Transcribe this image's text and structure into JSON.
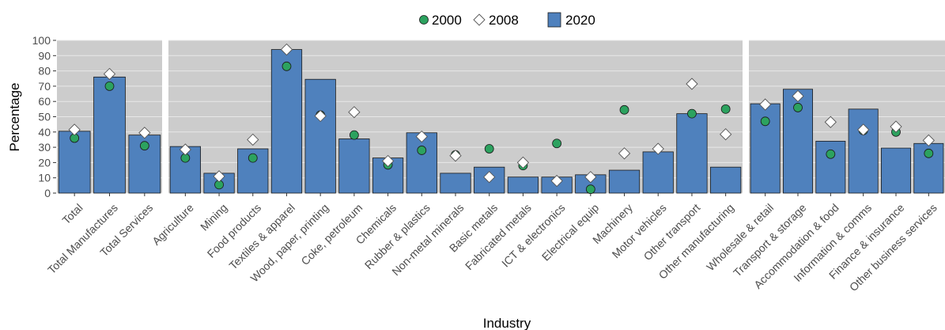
{
  "chart_data": {
    "type": "bar",
    "xlabel": "Industry",
    "ylabel": "Percentage",
    "ylim": [
      0,
      100
    ],
    "yticks": [
      0,
      10,
      20,
      30,
      40,
      50,
      60,
      70,
      80,
      90,
      100
    ],
    "grid": true,
    "legend": {
      "placement": "top",
      "items": [
        {
          "label": "2000",
          "marker": "circle",
          "color": "#2ca25f"
        },
        {
          "label": "2008",
          "marker": "diamond",
          "color": "#ffffff"
        },
        {
          "label": "2020",
          "marker": "bar",
          "color": "#4f81bd"
        }
      ]
    },
    "colors": {
      "bar": "#4f81bd",
      "panel": "#cccccc",
      "grid": "#e8e8e8",
      "circle": "#2ca25f",
      "diamond": "#ffffff"
    },
    "panels": [
      {
        "categories": [
          "Total",
          "Total Manufactures",
          "Total Services"
        ],
        "series": [
          {
            "name": "2020",
            "values": [
              40.5,
              76,
              38
            ]
          },
          {
            "name": "2000",
            "values": [
              36,
              70,
              31
            ]
          },
          {
            "name": "2008",
            "values": [
              41.5,
              78,
              39.5
            ]
          }
        ]
      },
      {
        "categories": [
          "Agriculture",
          "Mining",
          "Food products",
          "Textiles & apparel",
          "Wood, paper, printing",
          "Coke, petroleum",
          "Chemicals",
          "Rubber & plastics",
          "Non-metal minerals",
          "Basic metals",
          "Fabricated metals",
          "ICT & electronics",
          "Electrical equip",
          "Machinery",
          "Motor vehicles",
          "Other transport",
          "Other manufacturing"
        ],
        "series": [
          {
            "name": "2020",
            "values": [
              30.5,
              13,
              29,
              94,
              74.5,
              35.5,
              23,
              39.5,
              13,
              17,
              10.5,
              10.5,
              12,
              15,
              27,
              52,
              17
            ]
          },
          {
            "name": "2000",
            "values": [
              23,
              5.5,
              23,
              83,
              51,
              38,
              18.5,
              28,
              25,
              29,
              18,
              32.5,
              2.5,
              54.5,
              null,
              52,
              55
            ]
          },
          {
            "name": "2008",
            "values": [
              28.5,
              11,
              35,
              94,
              50.5,
              53,
              21,
              37,
              24.5,
              10.5,
              20,
              8,
              10.5,
              26,
              29,
              71.5,
              38.5
            ]
          }
        ]
      },
      {
        "categories": [
          "Wholesale & retail",
          "Transport & storage",
          "Accommodation & food",
          "Information & comms",
          "Finance & insurance",
          "Other business services"
        ],
        "series": [
          {
            "name": "2020",
            "values": [
              58.5,
              68,
              34,
              55,
              29.5,
              32.5
            ]
          },
          {
            "name": "2000",
            "values": [
              47,
              56,
              25.5,
              41,
              40,
              26
            ]
          },
          {
            "name": "2008",
            "values": [
              58,
              63.5,
              46.5,
              41.5,
              43.5,
              34.5
            ]
          }
        ]
      }
    ]
  }
}
